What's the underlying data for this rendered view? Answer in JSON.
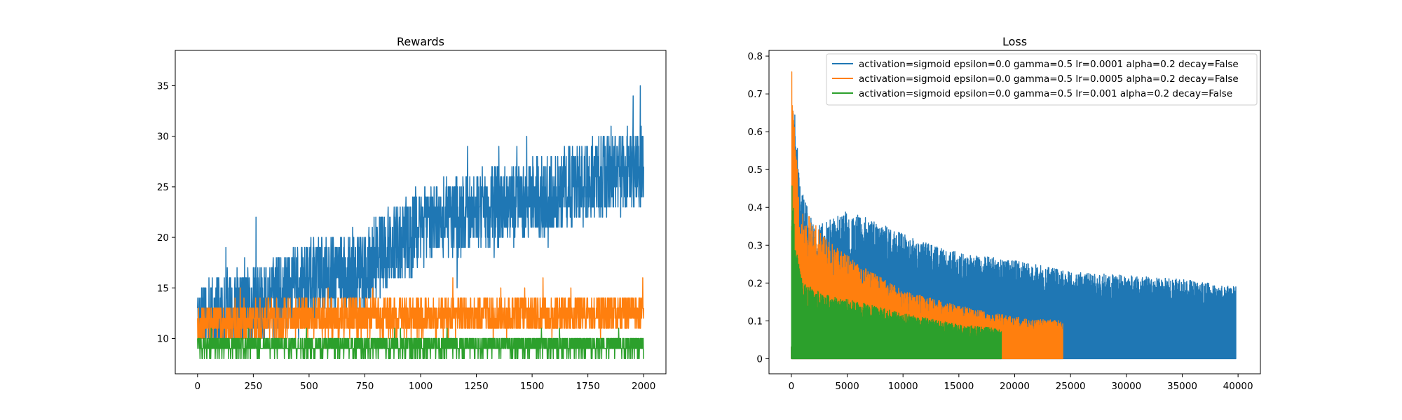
{
  "chart_data": [
    {
      "type": "line",
      "title": "Rewards",
      "xlabel": "",
      "ylabel": "",
      "xlim": [
        -100,
        2100
      ],
      "ylim": [
        6.5,
        38.5
      ],
      "xticks": [
        0,
        250,
        500,
        750,
        1000,
        1250,
        1500,
        1750,
        2000
      ],
      "yticks": [
        10,
        15,
        20,
        25,
        30,
        35
      ],
      "legend": null,
      "grid": false,
      "series": [
        {
          "color": "#1f77b4",
          "n_points": 2000,
          "x_range": [
            0,
            2000
          ],
          "trend": [
            [
              0,
              11.5
            ],
            [
              250,
              13
            ],
            [
              400,
              14.5
            ],
            [
              550,
              16
            ],
            [
              750,
              17
            ],
            [
              880,
              19
            ],
            [
              1000,
              21
            ],
            [
              1200,
              22.5
            ],
            [
              1400,
              23.5
            ],
            [
              1600,
              24.5
            ],
            [
              1800,
              26
            ],
            [
              2000,
              27
            ]
          ],
          "spread": 4,
          "min": 10,
          "max": 37
        },
        {
          "color": "#ff7f0e",
          "n_points": 2000,
          "x_range": [
            0,
            2000
          ],
          "trend": [
            [
              0,
              11.5
            ],
            [
              400,
              12
            ],
            [
              2000,
              12.5
            ]
          ],
          "spread": 1.8,
          "min": 9,
          "max": 16
        },
        {
          "color": "#2ca02c",
          "n_points": 2000,
          "x_range": [
            0,
            2000
          ],
          "trend": [
            [
              0,
              9.3
            ],
            [
              2000,
              9.3
            ]
          ],
          "spread": 1,
          "min": 8,
          "max": 11
        }
      ]
    },
    {
      "type": "line",
      "title": "Loss",
      "xlabel": "",
      "ylabel": "",
      "xlim": [
        -2000,
        42000
      ],
      "ylim": [
        -0.04,
        0.815
      ],
      "xticks": [
        0,
        5000,
        10000,
        15000,
        20000,
        25000,
        30000,
        35000,
        40000
      ],
      "yticks": [
        0.0,
        0.1,
        0.2,
        0.3,
        0.4,
        0.5,
        0.6,
        0.7,
        0.8
      ],
      "legend": "upper right",
      "grid": false,
      "series": [
        {
          "name": "activation=sigmoid epsilon=0.0 gamma=0.5 lr=0.0001 alpha=0.2 decay=False",
          "color": "#1f77b4",
          "n_points": 40000,
          "x_range": [
            0,
            39800
          ],
          "envelope": [
            [
              0,
              0.05
            ],
            [
              150,
              0.7
            ],
            [
              500,
              0.6
            ],
            [
              1000,
              0.45
            ],
            [
              2000,
              0.35
            ],
            [
              3000,
              0.36
            ],
            [
              5000,
              0.39
            ],
            [
              7000,
              0.37
            ],
            [
              10000,
              0.33
            ],
            [
              15000,
              0.28
            ],
            [
              20000,
              0.26
            ],
            [
              25000,
              0.23
            ],
            [
              30000,
              0.22
            ],
            [
              35000,
              0.21
            ],
            [
              39800,
              0.19
            ]
          ]
        },
        {
          "name": "activation=sigmoid epsilon=0.0 gamma=0.5 lr=0.0005 alpha=0.2 decay=False",
          "color": "#ff7f0e",
          "n_points": 24300,
          "x_range": [
            0,
            24300
          ],
          "envelope": [
            [
              0,
              0.05
            ],
            [
              40,
              0.78
            ],
            [
              300,
              0.6
            ],
            [
              800,
              0.4
            ],
            [
              1500,
              0.38
            ],
            [
              3000,
              0.32
            ],
            [
              6000,
              0.25
            ],
            [
              10000,
              0.18
            ],
            [
              15000,
              0.14
            ],
            [
              20000,
              0.11
            ],
            [
              24300,
              0.1
            ]
          ]
        },
        {
          "name": "activation=sigmoid epsilon=0.0 gamma=0.5 lr=0.001 alpha=0.2 decay=False",
          "color": "#2ca02c",
          "n_points": 18800,
          "x_range": [
            0,
            18800
          ],
          "envelope": [
            [
              0,
              0.05
            ],
            [
              30,
              0.5
            ],
            [
              400,
              0.3
            ],
            [
              1000,
              0.2
            ],
            [
              3000,
              0.17
            ],
            [
              6000,
              0.15
            ],
            [
              10000,
              0.12
            ],
            [
              15000,
              0.09
            ],
            [
              18800,
              0.08
            ]
          ]
        }
      ]
    }
  ]
}
